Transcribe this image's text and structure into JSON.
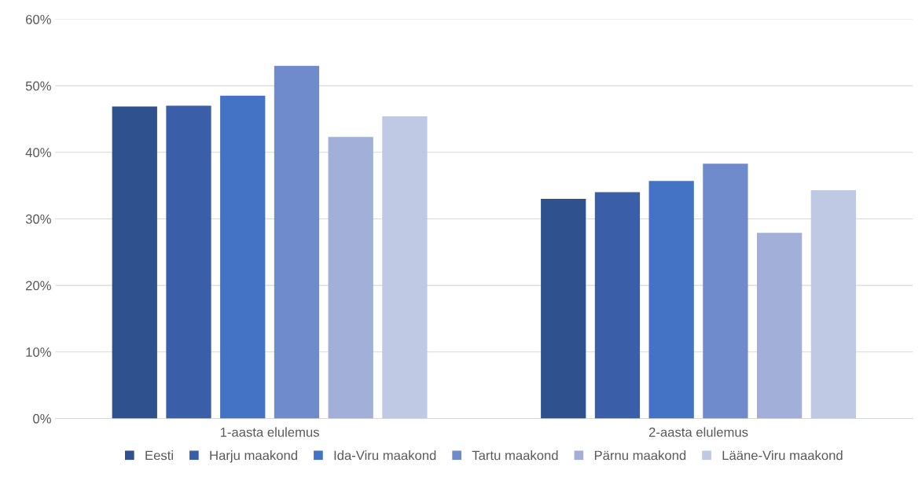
{
  "chart_data": {
    "type": "bar",
    "categories": [
      "1-aasta elulemus",
      "2-aasta elulemus"
    ],
    "series": [
      {
        "name": "Eesti",
        "color": "#2f528f",
        "values": [
          46.9,
          33.0
        ]
      },
      {
        "name": "Harju maakond",
        "color": "#3a5fa8",
        "values": [
          47.0,
          34.0
        ]
      },
      {
        "name": "Ida-Viru maakond",
        "color": "#4472c4",
        "values": [
          48.5,
          35.7
        ]
      },
      {
        "name": "Tartu maakond",
        "color": "#6f8bcc",
        "values": [
          53.0,
          38.3
        ]
      },
      {
        "name": "Pärnu maakond",
        "color": "#a1afd9",
        "values": [
          42.3,
          27.9
        ]
      },
      {
        "name": "Lääne-Viru maakond",
        "color": "#c0c9e4",
        "values": [
          45.4,
          34.3
        ]
      }
    ],
    "ylim": [
      0,
      60
    ],
    "yticks": [
      {
        "value": 0,
        "label": "0%"
      },
      {
        "value": 10,
        "label": "10%"
      },
      {
        "value": 20,
        "label": "20%"
      },
      {
        "value": 30,
        "label": "30%"
      },
      {
        "value": 40,
        "label": "40%"
      },
      {
        "value": 50,
        "label": "50%"
      },
      {
        "value": 60,
        "label": "60%"
      }
    ],
    "grid": "y",
    "legend": "bottom"
  }
}
